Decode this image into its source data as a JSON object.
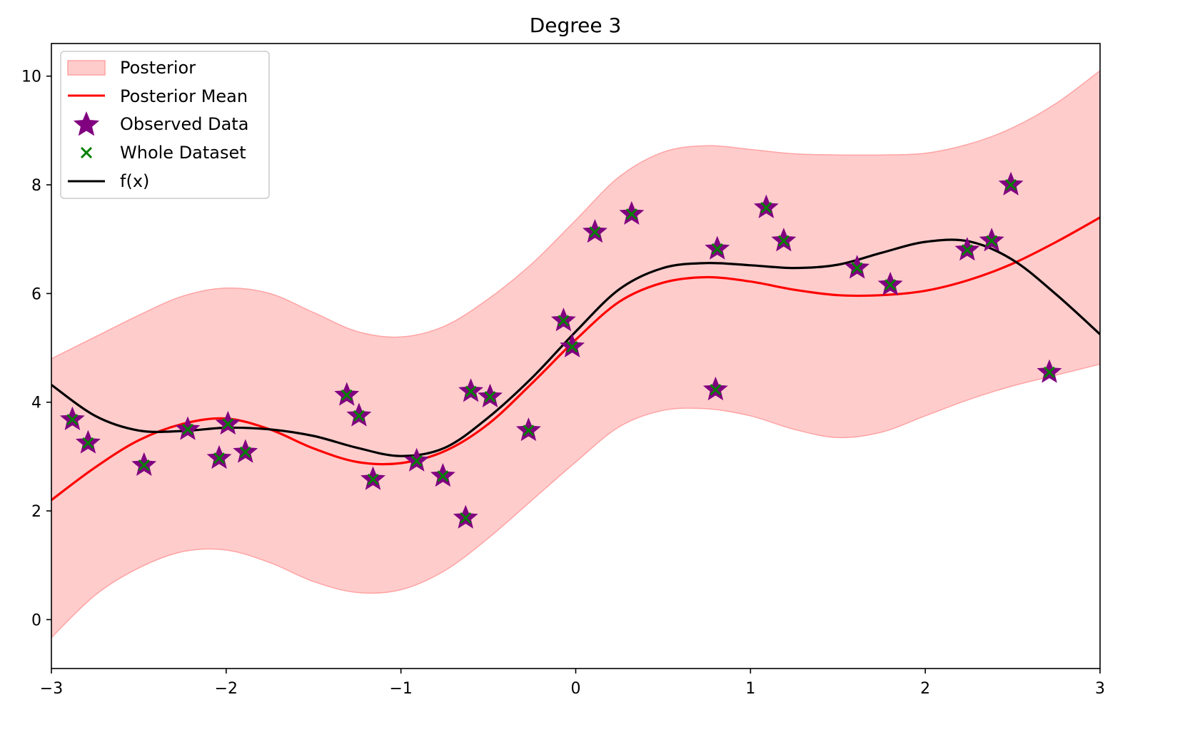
{
  "chart_data": {
    "type": "line",
    "title": "Degree 3",
    "xlabel": "",
    "ylabel": "",
    "xlim": [
      -3,
      3
    ],
    "ylim": [
      -0.9,
      10.6
    ],
    "xticks": [
      -3,
      -2,
      -1,
      0,
      1,
      2,
      3
    ],
    "xtick_labels": [
      "−3",
      "−2",
      "−1",
      "0",
      "1",
      "2",
      "3"
    ],
    "yticks": [
      0,
      2,
      4,
      6,
      8,
      10
    ],
    "ytick_labels": [
      "0",
      "2",
      "4",
      "6",
      "8",
      "10"
    ],
    "grid": false,
    "legend_position": "top-left",
    "legend": [
      {
        "key": "band",
        "label": "Posterior"
      },
      {
        "key": "mean",
        "label": "Posterior Mean"
      },
      {
        "key": "observed",
        "label": "Observed Data"
      },
      {
        "key": "whole",
        "label": "Whole Dataset"
      },
      {
        "key": "fx",
        "label": "f(x)"
      }
    ],
    "colors": {
      "band_fill": "#ffcccc",
      "band_edge": "#ffa3a3",
      "mean": "#ff0000",
      "fx": "#000000",
      "observed": "#800080",
      "whole": "#008000"
    },
    "posterior_band": {
      "x": [
        -3.0,
        -2.75,
        -2.5,
        -2.25,
        -2.0,
        -1.75,
        -1.5,
        -1.25,
        -1.0,
        -0.75,
        -0.5,
        -0.25,
        0.0,
        0.25,
        0.5,
        0.75,
        1.0,
        1.25,
        1.5,
        1.75,
        2.0,
        2.25,
        2.5,
        2.75,
        3.0
      ],
      "lower": [
        -0.33,
        0.45,
        0.95,
        1.25,
        1.28,
        1.05,
        0.7,
        0.5,
        0.55,
        0.9,
        1.5,
        2.2,
        2.9,
        3.55,
        3.85,
        3.88,
        3.75,
        3.5,
        3.35,
        3.45,
        3.75,
        4.05,
        4.3,
        4.5,
        4.7
      ],
      "upper": [
        4.8,
        5.2,
        5.6,
        5.95,
        6.1,
        6.0,
        5.65,
        5.3,
        5.2,
        5.4,
        5.9,
        6.55,
        7.35,
        8.15,
        8.6,
        8.72,
        8.65,
        8.57,
        8.55,
        8.55,
        8.58,
        8.75,
        9.05,
        9.5,
        10.1
      ]
    },
    "series": [
      {
        "name": "Posterior Mean",
        "x": [
          -3.0,
          -2.75,
          -2.5,
          -2.25,
          -2.0,
          -1.75,
          -1.5,
          -1.25,
          -1.0,
          -0.75,
          -0.5,
          -0.25,
          0.0,
          0.25,
          0.5,
          0.75,
          1.0,
          1.25,
          1.5,
          1.75,
          2.0,
          2.25,
          2.5,
          2.75,
          3.0
        ],
        "y": [
          2.2,
          2.8,
          3.3,
          3.6,
          3.7,
          3.5,
          3.15,
          2.9,
          2.88,
          3.1,
          3.6,
          4.35,
          5.15,
          5.85,
          6.2,
          6.3,
          6.22,
          6.07,
          5.97,
          5.97,
          6.05,
          6.25,
          6.55,
          6.95,
          7.4
        ]
      },
      {
        "name": "f(x)",
        "x": [
          -3.0,
          -2.75,
          -2.5,
          -2.25,
          -2.0,
          -1.75,
          -1.5,
          -1.25,
          -1.0,
          -0.75,
          -0.5,
          -0.25,
          0.0,
          0.25,
          0.5,
          0.75,
          1.0,
          1.25,
          1.5,
          1.75,
          2.0,
          2.25,
          2.5,
          2.75,
          3.0
        ],
        "y": [
          4.32,
          3.75,
          3.48,
          3.47,
          3.53,
          3.5,
          3.38,
          3.16,
          3.01,
          3.16,
          3.72,
          4.45,
          5.3,
          6.08,
          6.47,
          6.56,
          6.52,
          6.47,
          6.53,
          6.75,
          6.95,
          6.96,
          6.62,
          5.98,
          5.25
        ]
      }
    ],
    "observed_points": {
      "x": [
        -2.88,
        -2.79,
        -2.47,
        -2.22,
        -2.04,
        -1.99,
        -1.89,
        -1.31,
        -1.24,
        -1.16,
        -0.91,
        -0.76,
        -0.63,
        -0.6,
        -0.49,
        -0.27,
        -0.07,
        -0.02,
        0.11,
        0.32,
        0.8,
        0.81,
        1.09,
        1.19,
        1.61,
        1.8,
        2.24,
        2.38,
        2.49,
        2.71
      ],
      "y": [
        3.68,
        3.25,
        2.84,
        3.5,
        2.97,
        3.6,
        3.08,
        4.13,
        3.75,
        2.58,
        2.92,
        2.64,
        1.87,
        4.2,
        4.1,
        3.48,
        5.5,
        5.02,
        7.13,
        7.46,
        4.23,
        6.82,
        7.58,
        6.97,
        6.47,
        6.16,
        6.8,
        6.97,
        8.0,
        4.55
      ]
    }
  }
}
